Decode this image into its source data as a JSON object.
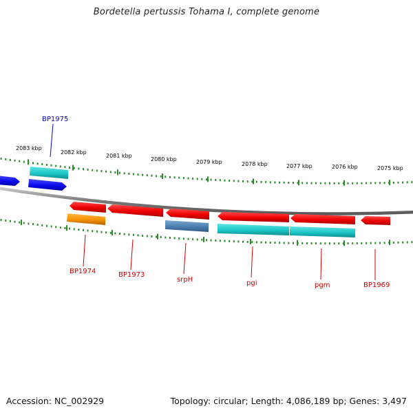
{
  "title": "Bordetella pertussis Tohama I, complete genome",
  "footer": {
    "accession": "Accession: NC_002929",
    "summary": "Topology: circular; Length: 4,086,189 bp; Genes: 3,497"
  },
  "ticks_kbp": [
    "2083 kbp",
    "2082 kbp",
    "2081 kbp",
    "2080 kbp",
    "2079 kbp",
    "2078 kbp",
    "2077 kbp",
    "2076 kbp",
    "2075 kbp"
  ],
  "gene_labels": [
    {
      "text": "BP1975",
      "color": "#0000cc"
    },
    {
      "text": "BP1974",
      "color": "#cc0000"
    },
    {
      "text": "BP1973",
      "color": "#cc0000"
    },
    {
      "text": "srpH",
      "color": "#cc0000"
    },
    {
      "text": "pgi",
      "color": "#cc0000"
    },
    {
      "text": "pgm",
      "color": "#cc0000"
    },
    {
      "text": "BP1969",
      "color": "#cc0000"
    }
  ],
  "colors": {
    "forward_gene": "#1414ff",
    "reverse_gene": "#ff0000",
    "cyan_feature": "#1cc8c8",
    "orange_feature": "#ff9900",
    "steel_feature": "#4a7fb0",
    "tick_color": "#2a8a2a",
    "backbone": "#808080"
  }
}
